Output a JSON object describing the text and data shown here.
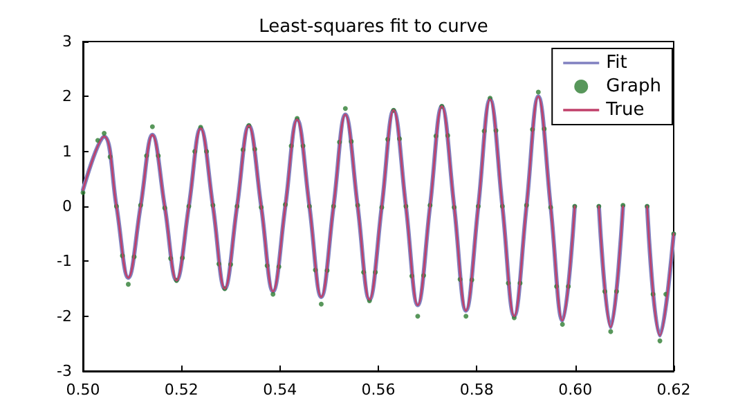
{
  "chart_data": {
    "type": "line",
    "title": "Least-squares fit to curve",
    "xlim": [
      0.5,
      0.62
    ],
    "xticks": [
      {
        "value": 0.5,
        "label": "0.50"
      },
      {
        "value": 0.52,
        "label": "0.52"
      },
      {
        "value": 0.54,
        "label": "0.54"
      },
      {
        "value": 0.56,
        "label": "0.56"
      },
      {
        "value": 0.58,
        "label": "0.58"
      },
      {
        "value": 0.6,
        "label": "0.60"
      },
      {
        "value": 0.62,
        "label": "0.62"
      }
    ],
    "ylim": [
      -3,
      3
    ],
    "yticks": [
      -3,
      -2,
      -1,
      0,
      1,
      2,
      3
    ],
    "grid": false,
    "legend": "top right",
    "series": [
      {
        "name": "Fit",
        "color": "#8080c0",
        "marker": "none",
        "x": [
          0.5,
          0.5043,
          0.5068,
          0.5092,
          0.5117,
          0.5141,
          0.5166,
          0.519,
          0.5215,
          0.5239,
          0.5264,
          0.5288,
          0.5313,
          0.5337,
          0.5362,
          0.5386,
          0.5411,
          0.5435,
          0.546,
          0.5484,
          0.5509,
          0.5533,
          0.5558,
          0.5582,
          0.5607,
          0.5631,
          0.5656,
          0.568,
          0.5705,
          0.5729,
          0.5754,
          0.5778,
          0.5803,
          0.5827,
          0.5852,
          0.5876,
          0.5901,
          0.5925,
          0.595,
          0.5974,
          0.5999,
          0.6023,
          0.6048,
          0.6072,
          0.6097,
          0.6121,
          0.6146,
          0.6172,
          0.62
        ],
        "values": [
          0.3,
          1.27,
          0,
          -1.3,
          0,
          1.3,
          0,
          -1.35,
          0,
          1.42,
          0,
          -1.5,
          0,
          1.47,
          0,
          -1.55,
          0,
          1.58,
          0,
          -1.65,
          0,
          1.67,
          0,
          -1.7,
          0,
          1.75,
          0,
          -1.8,
          0,
          1.82,
          0,
          -1.9,
          0,
          1.95,
          0,
          -2.0,
          0,
          2.0,
          0,
          -2.08,
          0,
          null,
          0,
          -2.2,
          0,
          null,
          0,
          -2.35,
          -0.5
        ]
      },
      {
        "name": "Graph",
        "type": "scatter",
        "color": "#2e7d32",
        "marker": "circle",
        "x": [
          0.5,
          0.503,
          0.5043,
          0.5055,
          0.5068,
          0.508,
          0.5092,
          0.5104,
          0.5117,
          0.5129,
          0.5141,
          0.5153,
          0.5166,
          0.5178,
          0.519,
          0.5202,
          0.5215,
          0.5227,
          0.5239,
          0.5251,
          0.5264,
          0.5276,
          0.5288,
          0.53,
          0.5313,
          0.5325,
          0.5337,
          0.5349,
          0.5362,
          0.5374,
          0.5386,
          0.5398,
          0.5411,
          0.5423,
          0.5435,
          0.5447,
          0.546,
          0.5472,
          0.5484,
          0.5496,
          0.5509,
          0.5521,
          0.5533,
          0.5545,
          0.5558,
          0.557,
          0.5582,
          0.5594,
          0.5607,
          0.5619,
          0.5631,
          0.5643,
          0.5656,
          0.5668,
          0.568,
          0.5692,
          0.5705,
          0.5717,
          0.5729,
          0.5741,
          0.5754,
          0.5766,
          0.5778,
          0.579,
          0.5803,
          0.5815,
          0.5827,
          0.5839,
          0.5852,
          0.5864,
          0.5876,
          0.5888,
          0.5901,
          0.5913,
          0.5925,
          0.5937,
          0.595,
          0.5962,
          0.5974,
          0.5986,
          0.5999,
          0.6011,
          0.6023,
          0.6035,
          0.6048,
          0.606,
          0.6072,
          0.6084,
          0.6097,
          0.6109,
          0.6121,
          0.6133,
          0.6146,
          0.6158,
          0.6172,
          0.6184,
          0.62
        ],
        "values": [
          0.25,
          1.2,
          1.33,
          0.9,
          0,
          -0.9,
          -1.42,
          -0.92,
          0.02,
          0.92,
          1.45,
          0.92,
          -0.03,
          -0.95,
          -1.35,
          -0.94,
          0,
          1.0,
          1.44,
          1.0,
          0.02,
          -1.05,
          -1.5,
          -1.06,
          0,
          1.03,
          1.47,
          1.04,
          -0.02,
          -1.08,
          -1.6,
          -1.1,
          0.03,
          1.1,
          1.6,
          1.1,
          0,
          -1.16,
          -1.78,
          -1.17,
          0,
          1.17,
          1.78,
          1.18,
          0.02,
          -1.2,
          -1.72,
          -1.2,
          -0.02,
          1.22,
          1.75,
          1.23,
          0,
          -1.27,
          -2.0,
          -1.26,
          0.02,
          1.28,
          1.82,
          1.29,
          -0.02,
          -1.33,
          -2.0,
          -1.34,
          0,
          1.37,
          1.97,
          1.38,
          0,
          -1.4,
          -2.03,
          -1.4,
          0.02,
          1.4,
          2.08,
          1.41,
          -0.02,
          -1.46,
          -2.15,
          -1.46,
          0,
          null,
          null,
          null,
          0,
          -1.55,
          -2.28,
          -1.55,
          0.02,
          null,
          null,
          null,
          0,
          -1.6,
          -2.45,
          -1.6,
          -0.5
        ]
      },
      {
        "name": "True",
        "color": "#c0406a",
        "marker": "none",
        "x": [
          0.5,
          0.5043,
          0.5068,
          0.5092,
          0.5117,
          0.5141,
          0.5166,
          0.519,
          0.5215,
          0.5239,
          0.5264,
          0.5288,
          0.5313,
          0.5337,
          0.5362,
          0.5386,
          0.5411,
          0.5435,
          0.546,
          0.5484,
          0.5509,
          0.5533,
          0.5558,
          0.5582,
          0.5607,
          0.5631,
          0.5656,
          0.568,
          0.5705,
          0.5729,
          0.5754,
          0.5778,
          0.5803,
          0.5827,
          0.5852,
          0.5876,
          0.5901,
          0.5925,
          0.595,
          0.5974,
          0.5999,
          0.6023,
          0.6048,
          0.6072,
          0.6097,
          0.6121,
          0.6146,
          0.6172,
          0.62
        ],
        "values": [
          0.3,
          1.27,
          0,
          -1.3,
          0,
          1.3,
          0,
          -1.35,
          0,
          1.42,
          0,
          -1.5,
          0,
          1.47,
          0,
          -1.55,
          0,
          1.58,
          0,
          -1.65,
          0,
          1.67,
          0,
          -1.7,
          0,
          1.75,
          0,
          -1.8,
          0,
          1.82,
          0,
          -1.9,
          0,
          1.95,
          0,
          -2.0,
          0,
          2.0,
          0,
          -2.08,
          0,
          null,
          0,
          -2.2,
          0,
          null,
          0,
          -2.35,
          -0.5
        ]
      }
    ]
  }
}
